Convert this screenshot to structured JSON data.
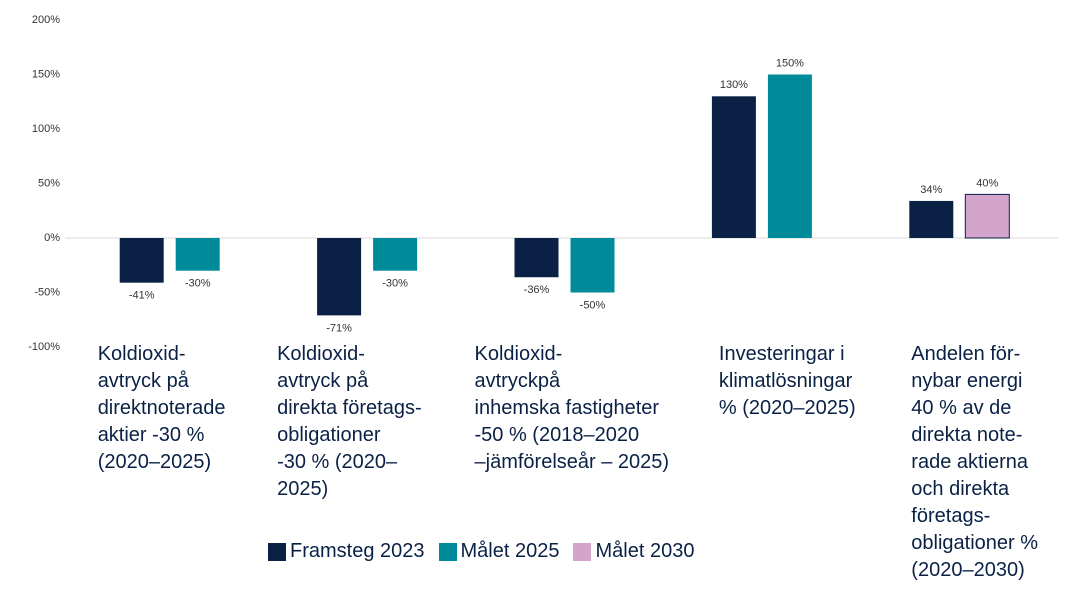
{
  "chart_data": {
    "type": "bar",
    "categories": [
      "Koldioxid-\navtryck på\ndirektnoterade\naktier -30 %\n(2020–2025)",
      "Koldioxid-\navtryck på\ndirekta företags-\nobligationer\n-30 % (2020–\n2025)",
      "Koldioxid-\navtryckpå\ninhemska fastigheter\n-50 % (2018–2020\n–jämförelseår – 2025)",
      "Investeringar i\nklimatlösningar\n% (2020–2025)",
      "Andelen för-\nnybar energi\n40 % av de\ndirekta note-\nrade aktierna\noch direkta\nföretags-\nobligationer %\n(2020–2030)"
    ],
    "series": [
      {
        "name": "Framsteg 2023",
        "color": "#0a2145",
        "values": [
          -41,
          -71,
          -36,
          130,
          34
        ],
        "value_labels": [
          "-41%",
          "-71%",
          "-36%",
          "130%",
          "34%"
        ]
      },
      {
        "name": "Målet  2025",
        "color": "#008b9a",
        "values": [
          -30,
          -30,
          -50,
          150,
          null
        ],
        "value_labels": [
          "-30%",
          "-30%",
          "-50%",
          "150%",
          null
        ]
      },
      {
        "name": "Målet  2030",
        "color": "#d4a5cc",
        "values": [
          null,
          null,
          null,
          null,
          40
        ],
        "value_labels": [
          null,
          null,
          null,
          null,
          "40%"
        ]
      }
    ],
    "ylim": [
      -100,
      200
    ],
    "yticks": [
      {
        "value": -100,
        "label": "-100%"
      },
      {
        "value": -50,
        "label": "-50%"
      },
      {
        "value": 0,
        "label": "0%"
      },
      {
        "value": 50,
        "label": "50%"
      },
      {
        "value": 100,
        "label": "100%"
      },
      {
        "value": 150,
        "label": "150%"
      },
      {
        "value": 200,
        "label": "200%"
      }
    ],
    "grid": false,
    "legend": "bottom"
  }
}
